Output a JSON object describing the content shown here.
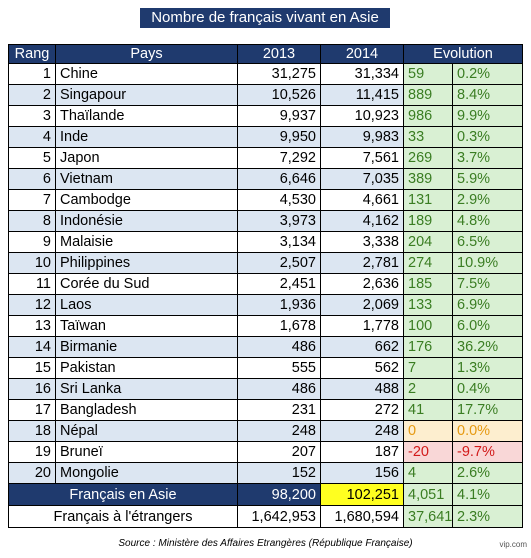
{
  "title": "Nombre de français vivant en Asie",
  "header": [
    "Rang",
    "Pays",
    "2013",
    "2014",
    "Evolution"
  ],
  "rows": [
    [
      "1",
      "Chine",
      "31,275",
      "31,334",
      "59",
      "0.2%"
    ],
    [
      "2",
      "Singapour",
      "10,526",
      "11,415",
      "889",
      "8.4%"
    ],
    [
      "3",
      "Thaïlande",
      "9,937",
      "10,923",
      "986",
      "9.9%"
    ],
    [
      "4",
      "Inde",
      "9,950",
      "9,983",
      "33",
      "0.3%"
    ],
    [
      "5",
      "Japon",
      "7,292",
      "7,561",
      "269",
      "3.7%"
    ],
    [
      "6",
      "Vietnam",
      "6,646",
      "7,035",
      "389",
      "5.9%"
    ],
    [
      "7",
      "Cambodge",
      "4,530",
      "4,661",
      "131",
      "2.9%"
    ],
    [
      "8",
      "Indonésie",
      "3,973",
      "4,162",
      "189",
      "4.8%"
    ],
    [
      "9",
      "Malaisie",
      "3,134",
      "3,338",
      "204",
      "6.5%"
    ],
    [
      "10",
      "Philippines",
      "2,507",
      "2,781",
      "274",
      "10.9%"
    ],
    [
      "11",
      "Corée du Sud",
      "2,451",
      "2,636",
      "185",
      "7.5%"
    ],
    [
      "12",
      "Laos",
      "1,936",
      "2,069",
      "133",
      "6.9%"
    ],
    [
      "13",
      "Taïwan",
      "1,678",
      "1,778",
      "100",
      "6.0%"
    ],
    [
      "14",
      "Birmanie",
      "486",
      "662",
      "176",
      "36.2%"
    ],
    [
      "15",
      "Pakistan",
      "555",
      "562",
      "7",
      "1.3%"
    ],
    [
      "16",
      "Sri Lanka",
      "486",
      "488",
      "2",
      "0.4%"
    ],
    [
      "17",
      "Bangladesh",
      "231",
      "272",
      "41",
      "17.7%"
    ],
    [
      "18",
      "Népal",
      "248",
      "248",
      "0",
      "0.0%"
    ],
    [
      "19",
      "Bruneï",
      "207",
      "187",
      "-20",
      "-9.7%"
    ],
    [
      "20",
      "Mongolie",
      "152",
      "156",
      "4",
      "2.6%"
    ]
  ],
  "totals": [
    [
      "Français en Asie",
      "98,200",
      "102,251",
      "4,051",
      "4.1%"
    ],
    [
      "Français à l'étrangers",
      "1,642,953",
      "1,680,594",
      "37,641",
      "2.3%"
    ]
  ],
  "source": "Source : Ministère des Affaires Etrangères (République Française)",
  "watermark": "vip.com"
}
